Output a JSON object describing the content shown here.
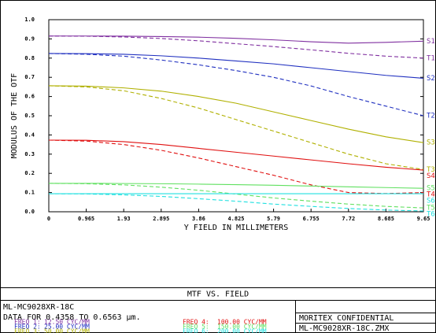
{
  "chart_data": {
    "type": "line",
    "title": "MTF VS. FIELD",
    "x_label": "Y FIELD IN MILLIMETERS",
    "y_label": "MODULUS OF THE OTF",
    "x": [
      0,
      0.965,
      1.93,
      2.895,
      3.86,
      4.825,
      5.79,
      6.755,
      7.72,
      8.685,
      9.65
    ],
    "xlim": [
      0,
      9.65
    ],
    "xticks": [
      0,
      0.965,
      1.93,
      2.895,
      3.86,
      4.825,
      5.79,
      6.755,
      7.72,
      8.685,
      9.65
    ],
    "ylim": [
      0,
      1
    ],
    "yticks": [
      {
        "value": 0,
        "label": "0.0"
      },
      0.1,
      0.2,
      0.3,
      0.4,
      0.5,
      0.6,
      0.7,
      0.8,
      0.9,
      {
        "value": 1,
        "label": "1.0"
      }
    ],
    "series": [
      {
        "name": "S1",
        "color": "#8030a0",
        "dashed": false,
        "values": [
          0.915,
          0.915,
          0.914,
          0.912,
          0.909,
          0.903,
          0.895,
          0.885,
          0.878,
          0.882,
          0.888
        ]
      },
      {
        "name": "T1",
        "color": "#8030a0",
        "dashed": true,
        "values": [
          0.915,
          0.914,
          0.91,
          0.902,
          0.89,
          0.875,
          0.86,
          0.843,
          0.825,
          0.81,
          0.8
        ]
      },
      {
        "name": "S2",
        "color": "#2030c0",
        "dashed": false,
        "values": [
          0.824,
          0.823,
          0.82,
          0.812,
          0.8,
          0.785,
          0.77,
          0.75,
          0.73,
          0.71,
          0.695
        ]
      },
      {
        "name": "T2",
        "color": "#2030c0",
        "dashed": true,
        "values": [
          0.824,
          0.82,
          0.81,
          0.79,
          0.765,
          0.735,
          0.7,
          0.655,
          0.6,
          0.55,
          0.5
        ]
      },
      {
        "name": "S3",
        "color": "#b0b000",
        "dashed": false,
        "values": [
          0.656,
          0.654,
          0.645,
          0.628,
          0.6,
          0.565,
          0.52,
          0.475,
          0.43,
          0.39,
          0.36
        ]
      },
      {
        "name": "T3",
        "color": "#b0b000",
        "dashed": true,
        "values": [
          0.656,
          0.65,
          0.63,
          0.59,
          0.54,
          0.48,
          0.42,
          0.36,
          0.3,
          0.25,
          0.22
        ]
      },
      {
        "name": "S4",
        "color": "#e01010",
        "dashed": false,
        "values": [
          0.373,
          0.372,
          0.365,
          0.35,
          0.33,
          0.31,
          0.29,
          0.27,
          0.25,
          0.232,
          0.217
        ]
      },
      {
        "name": "T4",
        "color": "#e01010",
        "dashed": true,
        "values": [
          0.373,
          0.368,
          0.35,
          0.32,
          0.28,
          0.235,
          0.19,
          0.14,
          0.1,
          0.095,
          0.1
        ]
      },
      {
        "name": "S5",
        "color": "#60e060",
        "dashed": false,
        "values": [
          0.148,
          0.148,
          0.147,
          0.146,
          0.144,
          0.141,
          0.138,
          0.134,
          0.13,
          0.126,
          0.122
        ]
      },
      {
        "name": "T5",
        "color": "#60e060",
        "dashed": true,
        "values": [
          0.148,
          0.146,
          0.14,
          0.128,
          0.112,
          0.092,
          0.072,
          0.055,
          0.04,
          0.028,
          0.02
        ]
      },
      {
        "name": "S6",
        "color": "#20e0e0",
        "dashed": false,
        "values": [
          0.094,
          0.094,
          0.094,
          0.094,
          0.094,
          0.094,
          0.094,
          0.094,
          0.094,
          0.094,
          0.094
        ]
      },
      {
        "name": "T6",
        "color": "#20e0e0",
        "dashed": true,
        "values": [
          0.094,
          0.093,
          0.088,
          0.08,
          0.068,
          0.055,
          0.04,
          0.028,
          0.017,
          0.009,
          0.004
        ]
      }
    ],
    "lens": "ML-MC9028XR-18C",
    "data_note": "DATA FOR 0.4358 TO 0.6563 µm.",
    "frequencies": [
      {
        "label": "FREQ 1:",
        "value": "12.50 CYC/MM",
        "color": "#8030a0"
      },
      {
        "label": "FREQ 2:",
        "value": "25.00 CYC/MM",
        "color": "#2030c0"
      },
      {
        "label": "FREQ 3:",
        "value": "50.00 CYC/MM",
        "color": "#b0b000"
      },
      {
        "label": "FREQ 4:",
        "value": "100.00 CYC/MM",
        "color": "#e01010"
      },
      {
        "label": "FREQ 5:",
        "value": "150.00 CYC/MM",
        "color": "#60e060"
      },
      {
        "label": "FREQ 6:",
        "value": "200.00 CYC/MM",
        "color": "#20e0e0"
      }
    ],
    "confidential": "MORITEX CONFIDENTIAL",
    "file": "ML-MC9028XR-18C.ZMX"
  }
}
